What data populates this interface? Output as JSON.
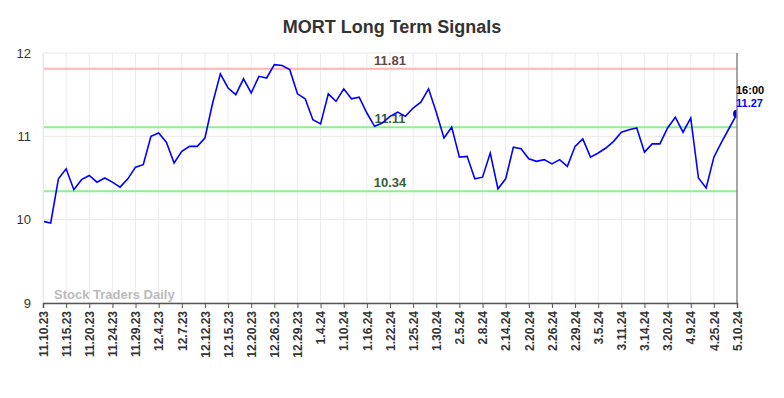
{
  "chart_data": {
    "type": "line",
    "title": "MORT Long Term Signals",
    "categories": [
      "11.10.23",
      null,
      null,
      "11.15.23",
      null,
      null,
      "11.20.23",
      null,
      null,
      "11.24.23",
      null,
      null,
      "11.29.23",
      null,
      null,
      "12.4.23",
      null,
      null,
      "12.7.23",
      null,
      null,
      "12.12.23",
      null,
      null,
      "12.15.23",
      null,
      null,
      "12.20.23",
      null,
      null,
      "12.26.23",
      null,
      null,
      "12.29.23",
      null,
      null,
      "1.4.24",
      null,
      null,
      "1.10.24",
      null,
      null,
      "1.16.24",
      null,
      null,
      "1.22.24",
      null,
      null,
      "1.25.24",
      null,
      null,
      "1.30.24",
      null,
      null,
      "2.5.24",
      null,
      null,
      "2.8.24",
      null,
      null,
      "2.14.24",
      null,
      null,
      "2.20.24",
      null,
      null,
      "2.26.24",
      null,
      null,
      "2.29.24",
      null,
      null,
      "3.5.24",
      null,
      null,
      "3.11.24",
      null,
      null,
      "3.14.24",
      null,
      null,
      "3.20.24",
      null,
      null,
      "4.9.24",
      null,
      null,
      "4.25.24",
      null,
      null,
      "5.10.24"
    ],
    "values": [
      9.98,
      9.96,
      10.49,
      10.61,
      10.36,
      10.48,
      10.53,
      10.45,
      10.5,
      10.45,
      10.39,
      10.49,
      10.63,
      10.66,
      11.0,
      11.04,
      10.93,
      10.68,
      10.82,
      10.88,
      10.88,
      10.98,
      11.4,
      11.75,
      11.58,
      11.5,
      11.69,
      11.52,
      11.72,
      11.7,
      11.86,
      11.85,
      11.8,
      11.51,
      11.45,
      11.2,
      11.15,
      11.51,
      11.42,
      11.57,
      11.45,
      11.47,
      11.28,
      11.12,
      11.16,
      11.24,
      11.29,
      11.24,
      11.34,
      11.41,
      11.57,
      11.29,
      10.98,
      11.11,
      10.75,
      10.76,
      10.49,
      10.51,
      10.8,
      10.37,
      10.49,
      10.87,
      10.85,
      10.73,
      10.7,
      10.72,
      10.67,
      10.72,
      10.64,
      10.88,
      10.97,
      10.75,
      10.8,
      10.86,
      10.94,
      11.05,
      11.08,
      11.1,
      10.81,
      10.91,
      10.91,
      11.1,
      11.23,
      11.05,
      11.22,
      10.5,
      10.38,
      10.75,
      10.93,
      11.1,
      11.27
    ],
    "color": "#0000ff",
    "ylim": [
      9,
      12
    ],
    "yticks": [
      9,
      10,
      11,
      12
    ],
    "grid": true,
    "reference_lines": [
      {
        "value": 11.81,
        "color": "#ffb3b3"
      },
      {
        "value": 11.11,
        "color": "#90ee90"
      },
      {
        "value": 10.34,
        "color": "#90ee90"
      }
    ],
    "time_label": "16:00",
    "watermark": "Stock Traders Daily"
  }
}
